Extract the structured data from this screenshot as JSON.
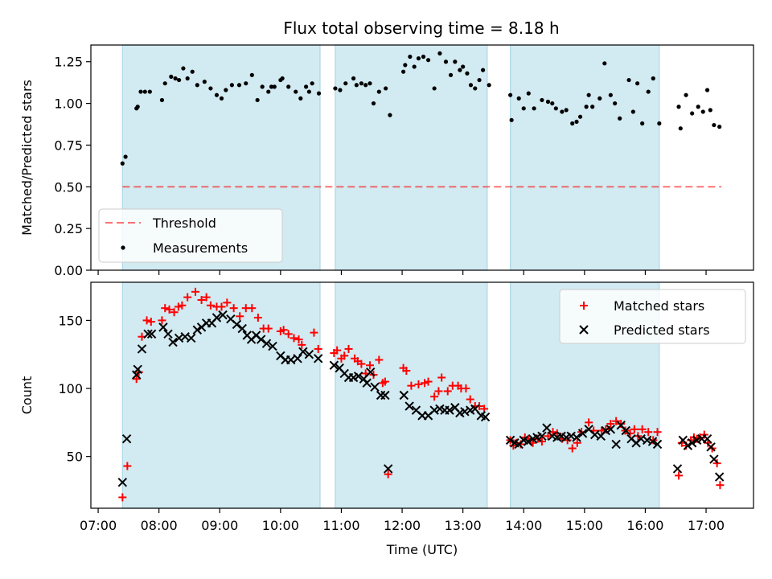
{
  "title": "Flux total observing time = 8.18 h",
  "colors": {
    "band": "#add8e6",
    "threshold": "#ff0000",
    "matched": "#ff0000",
    "predicted": "#000000",
    "measurements": "#000000"
  },
  "chart_data": [
    {
      "type": "scatter",
      "ylabel": "Matched/Predicted stars",
      "xlabel": "",
      "xlim": [
        6.88,
        17.78
      ],
      "ylim": [
        0.0,
        1.35
      ],
      "xticks": [
        7,
        8,
        9,
        10,
        11,
        12,
        13,
        14,
        15,
        16,
        17
      ],
      "yticks": [
        "0.00",
        "0.25",
        "0.50",
        "0.75",
        "1.00",
        "1.25"
      ],
      "shaded_bands": [
        [
          7.4,
          10.65
        ],
        [
          10.9,
          13.4
        ],
        [
          13.78,
          16.23
        ]
      ],
      "threshold": {
        "name": "Threshold",
        "value": 0.5,
        "x_range": [
          7.4,
          17.25
        ]
      },
      "legend": {
        "placement": "lower-left",
        "entries": [
          "Threshold",
          "Measurements"
        ]
      },
      "series": [
        {
          "name": "Measurements",
          "x": [
            7.4,
            7.45,
            7.63,
            7.65,
            7.7,
            7.77,
            7.85,
            8.05,
            8.1,
            8.2,
            8.27,
            8.33,
            8.4,
            8.47,
            8.55,
            8.63,
            8.75,
            8.85,
            8.95,
            9.03,
            9.1,
            9.2,
            9.32,
            9.43,
            9.53,
            9.62,
            9.7,
            9.8,
            9.85,
            9.9,
            10.0,
            10.03,
            10.13,
            10.25,
            10.33,
            10.42,
            10.47,
            10.52,
            10.63,
            10.9,
            10.98,
            11.07,
            11.2,
            11.25,
            11.33,
            11.4,
            11.47,
            11.53,
            11.62,
            11.73,
            11.8,
            12.02,
            12.05,
            12.13,
            12.2,
            12.27,
            12.35,
            12.43,
            12.53,
            12.62,
            12.72,
            12.8,
            12.87,
            12.95,
            13.0,
            13.07,
            13.13,
            13.2,
            13.27,
            13.33,
            13.43,
            13.78,
            13.8,
            13.92,
            14.0,
            14.08,
            14.17,
            14.3,
            14.4,
            14.47,
            14.53,
            14.63,
            14.7,
            14.8,
            14.87,
            14.93,
            15.03,
            15.07,
            15.13,
            15.25,
            15.33,
            15.43,
            15.5,
            15.58,
            15.73,
            15.8,
            15.87,
            15.95,
            16.05,
            16.13,
            16.23,
            16.55,
            16.58,
            16.67,
            16.77,
            16.87,
            16.95,
            17.02,
            17.07,
            17.13,
            17.22
          ],
          "y": [
            0.64,
            0.68,
            0.97,
            0.98,
            1.07,
            1.07,
            1.07,
            1.02,
            1.12,
            1.16,
            1.15,
            1.14,
            1.21,
            1.15,
            1.19,
            1.11,
            1.13,
            1.09,
            1.05,
            1.03,
            1.08,
            1.11,
            1.11,
            1.12,
            1.17,
            1.02,
            1.1,
            1.07,
            1.1,
            1.1,
            1.14,
            1.15,
            1.1,
            1.07,
            1.03,
            1.1,
            1.07,
            1.12,
            1.06,
            1.09,
            1.08,
            1.12,
            1.15,
            1.11,
            1.12,
            1.11,
            1.12,
            1.0,
            1.07,
            1.09,
            0.93,
            1.19,
            1.23,
            1.28,
            1.22,
            1.27,
            1.28,
            1.26,
            1.09,
            1.3,
            1.25,
            1.17,
            1.25,
            1.2,
            1.22,
            1.18,
            1.11,
            1.09,
            1.14,
            1.2,
            1.11,
            1.05,
            0.9,
            1.03,
            0.97,
            1.06,
            0.97,
            1.02,
            1.01,
            1.0,
            0.97,
            0.95,
            0.96,
            0.88,
            0.89,
            0.92,
            0.98,
            1.05,
            0.98,
            1.03,
            1.24,
            1.05,
            1.0,
            0.91,
            1.14,
            0.95,
            1.12,
            0.88,
            1.07,
            1.15,
            0.88,
            0.98,
            0.85,
            1.05,
            0.94,
            0.98,
            0.95,
            1.08,
            0.96,
            0.87,
            0.86
          ]
        }
      ]
    },
    {
      "type": "scatter",
      "ylabel": "Count",
      "xlabel": "Time (UTC)",
      "xlim": [
        6.88,
        17.78
      ],
      "ylim": [
        12,
        178
      ],
      "xticks": [
        7,
        8,
        9,
        10,
        11,
        12,
        13,
        14,
        15,
        16,
        17
      ],
      "xticklabels": [
        "07:00",
        "08:00",
        "09:00",
        "10:00",
        "11:00",
        "12:00",
        "13:00",
        "14:00",
        "15:00",
        "16:00",
        "17:00"
      ],
      "yticks": [
        50,
        100,
        150
      ],
      "shaded_bands": [
        [
          7.4,
          10.65
        ],
        [
          10.9,
          13.4
        ],
        [
          13.78,
          16.23
        ]
      ],
      "legend": {
        "placement": "top-right",
        "entries": [
          "Matched stars",
          "Predicted stars"
        ]
      },
      "series": [
        {
          "name": "Matched stars",
          "marker": "+",
          "x": [
            7.4,
            7.48,
            7.63,
            7.67,
            7.72,
            7.8,
            7.87,
            8.05,
            8.1,
            8.17,
            8.25,
            8.32,
            8.38,
            8.47,
            8.6,
            8.7,
            8.78,
            8.85,
            8.95,
            9.03,
            9.12,
            9.23,
            9.33,
            9.43,
            9.53,
            9.63,
            9.72,
            9.8,
            10.0,
            10.05,
            10.13,
            10.22,
            10.3,
            10.35,
            10.55,
            10.62,
            10.88,
            10.93,
            11.0,
            11.05,
            11.12,
            11.22,
            11.27,
            11.33,
            11.4,
            11.47,
            11.53,
            11.62,
            11.68,
            11.72,
            11.77,
            12.02,
            12.07,
            12.15,
            12.27,
            12.37,
            12.43,
            12.53,
            12.6,
            12.65,
            12.75,
            12.83,
            12.92,
            12.97,
            13.05,
            13.12,
            13.2,
            13.27,
            13.35,
            13.78,
            13.83,
            13.88,
            13.95,
            14.02,
            14.08,
            14.15,
            14.23,
            14.3,
            14.4,
            14.48,
            14.55,
            14.63,
            14.72,
            14.8,
            14.88,
            14.95,
            15.07,
            15.15,
            15.28,
            15.35,
            15.43,
            15.52,
            15.6,
            15.67,
            15.75,
            15.82,
            15.88,
            15.95,
            16.05,
            16.13,
            16.2,
            16.55,
            16.6,
            16.67,
            16.75,
            16.8,
            16.85,
            16.9,
            16.97,
            17.03,
            17.1,
            17.18,
            17.23
          ],
          "y": [
            20,
            43,
            107,
            112,
            138,
            150,
            149,
            150,
            159,
            158,
            156,
            160,
            161,
            167,
            171,
            165,
            167,
            161,
            160,
            160,
            163,
            159,
            153,
            159,
            159,
            152,
            144,
            144,
            142,
            143,
            140,
            137,
            136,
            132,
            141,
            129,
            126,
            128,
            122,
            124,
            129,
            122,
            120,
            118,
            111,
            117,
            110,
            121,
            104,
            105,
            37,
            115,
            113,
            102,
            103,
            104,
            105,
            94,
            98,
            108,
            98,
            102,
            102,
            100,
            100,
            92,
            87,
            87,
            85,
            62,
            58,
            60,
            59,
            64,
            63,
            60,
            63,
            61,
            65,
            68,
            67,
            63,
            62,
            56,
            60,
            68,
            75,
            69,
            69,
            70,
            74,
            76,
            74,
            69,
            67,
            70,
            65,
            70,
            68,
            62,
            68,
            36,
            60,
            58,
            62,
            64,
            63,
            64,
            66,
            60,
            56,
            45,
            29
          ],
          "y_note": null
        },
        {
          "name": "Predicted stars",
          "marker": "x",
          "x": [
            7.4,
            7.47,
            7.63,
            7.65,
            7.72,
            7.82,
            7.88,
            8.07,
            8.15,
            8.23,
            8.33,
            8.43,
            8.53,
            8.63,
            8.7,
            8.78,
            8.87,
            8.95,
            9.05,
            9.18,
            9.28,
            9.37,
            9.45,
            9.52,
            9.6,
            9.68,
            9.77,
            9.87,
            10.0,
            10.08,
            10.17,
            10.28,
            10.37,
            10.47,
            10.62,
            10.88,
            10.97,
            11.05,
            11.12,
            11.2,
            11.28,
            11.37,
            11.42,
            11.48,
            11.55,
            11.65,
            11.72,
            11.77,
            12.03,
            12.12,
            12.23,
            12.33,
            12.43,
            12.53,
            12.62,
            12.7,
            12.78,
            12.87,
            12.95,
            13.03,
            13.12,
            13.2,
            13.3,
            13.37,
            13.78,
            13.85,
            13.92,
            14.0,
            14.07,
            14.15,
            14.22,
            14.3,
            14.38,
            14.47,
            14.55,
            14.62,
            14.7,
            14.78,
            14.87,
            14.97,
            15.07,
            15.17,
            15.27,
            15.35,
            15.43,
            15.52,
            15.6,
            15.68,
            15.77,
            15.85,
            15.93,
            16.03,
            16.12,
            16.2,
            16.53,
            16.62,
            16.7,
            16.77,
            16.85,
            16.93,
            17.02,
            17.08,
            17.13,
            17.22
          ],
          "y": [
            31,
            63,
            110,
            114,
            129,
            140,
            140,
            145,
            140,
            134,
            137,
            138,
            137,
            143,
            145,
            148,
            148,
            152,
            154,
            151,
            147,
            144,
            139,
            136,
            139,
            136,
            133,
            131,
            124,
            121,
            121,
            122,
            127,
            125,
            122,
            117,
            115,
            111,
            108,
            108,
            109,
            107,
            104,
            112,
            101,
            95,
            95,
            41,
            95,
            87,
            84,
            80,
            80,
            84,
            85,
            84,
            84,
            86,
            82,
            83,
            84,
            85,
            80,
            79,
            62,
            60,
            59,
            62,
            61,
            63,
            64,
            65,
            71,
            65,
            64,
            65,
            64,
            65,
            64,
            67,
            70,
            66,
            65,
            69,
            70,
            59,
            73,
            69,
            63,
            60,
            63,
            62,
            61,
            59,
            41,
            62,
            58,
            60,
            62,
            63,
            63,
            57,
            48,
            35
          ]
        }
      ]
    }
  ]
}
